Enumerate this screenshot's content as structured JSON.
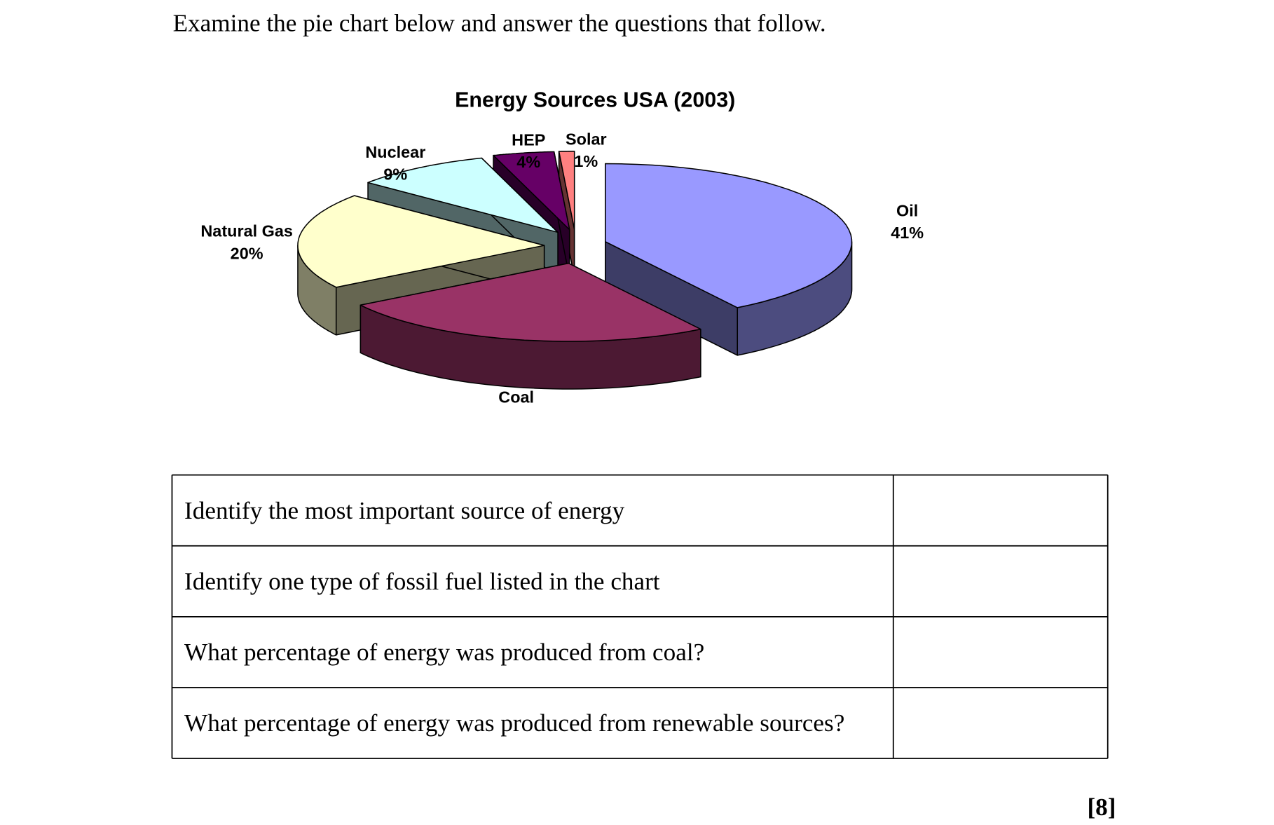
{
  "instruction": "Examine the pie chart below and answer the questions that follow.",
  "chart_data": {
    "type": "pie",
    "title": "Energy Sources USA (2003)",
    "categories": [
      "Oil",
      "Coal",
      "Natural Gas",
      "Nuclear",
      "HEP",
      "Solar"
    ],
    "values": [
      41,
      25,
      20,
      9,
      4,
      1
    ],
    "value_labels": [
      "41%",
      null,
      "20%",
      "9%",
      "4%",
      "1%"
    ],
    "colors": [
      "#9999ff",
      "#993366",
      "#ffffcc",
      "#ccffff",
      "#660066",
      "#ff8080"
    ],
    "exploded": true,
    "three_d": true
  },
  "table": {
    "rows": [
      [
        "Identify the most important source of energy"
      ],
      [
        "Identify one type of fossil fuel listed in the chart"
      ],
      [
        "What percentage of energy was produced from coal?"
      ],
      [
        "What percentage of energy was produced from renewable sources?"
      ]
    ]
  },
  "marks": "[8]"
}
